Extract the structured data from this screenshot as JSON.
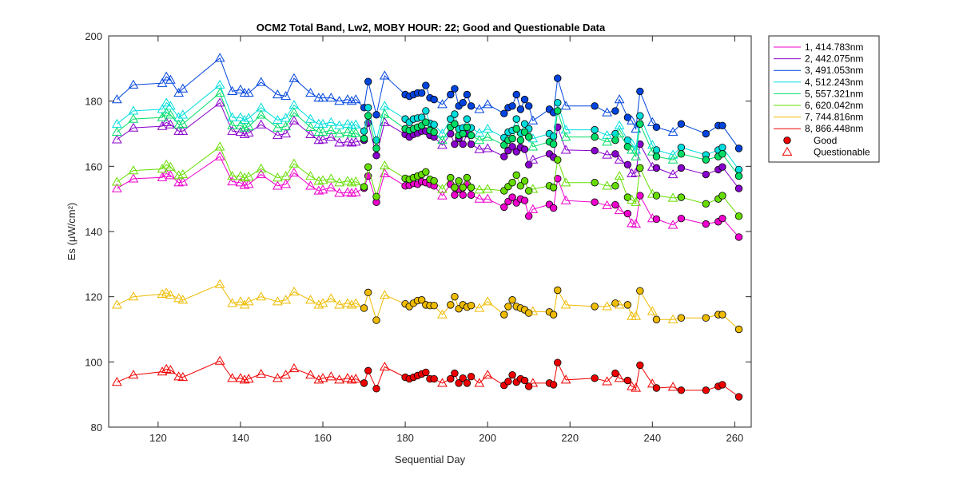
{
  "chart_data": {
    "type": "line",
    "title": "OCM2 Total Band,  Lw2, MOBY HOUR: 22;  Good and Questionable Data",
    "xlabel": "Sequential Day",
    "ylabel": "Es (μW/cm²)",
    "xlim": [
      108,
      264
    ],
    "ylim": [
      80,
      200
    ],
    "xticks": [
      120,
      140,
      160,
      180,
      200,
      220,
      240,
      260
    ],
    "yticks": [
      80,
      100,
      120,
      140,
      160,
      180,
      200
    ],
    "grid": false,
    "legend_position": "outside-right",
    "marker_legend": [
      {
        "label": "Good",
        "marker": "circle"
      },
      {
        "label": "Questionable",
        "marker": "triangle"
      }
    ],
    "x": [
      110,
      114,
      121,
      122,
      123,
      125,
      126,
      135,
      138,
      140,
      141,
      142,
      145,
      149,
      151,
      153,
      157,
      159,
      160,
      162,
      164,
      166,
      167,
      168,
      170,
      171,
      173,
      175,
      180,
      181,
      182,
      183,
      184,
      185,
      186,
      187,
      189,
      191,
      192,
      193,
      194,
      195,
      196,
      198,
      200,
      204,
      205,
      206,
      207,
      208,
      209,
      210,
      211,
      215,
      216,
      217,
      219,
      226,
      229,
      231,
      232,
      234,
      235,
      236,
      237,
      240,
      241,
      245,
      247,
      253,
      256,
      257,
      261
    ],
    "status": [
      "Q",
      "Q",
      "Q",
      "Q",
      "Q",
      "Q",
      "Q",
      "Q",
      "Q",
      "Q",
      "Q",
      "Q",
      "Q",
      "Q",
      "Q",
      "Q",
      "Q",
      "Q",
      "Q",
      "Q",
      "Q",
      "Q",
      "Q",
      "Q",
      "G",
      "G",
      "G",
      "Q",
      "G",
      "G",
      "G",
      "G",
      "G",
      "G",
      "G",
      "G",
      "Q",
      "G",
      "G",
      "G",
      "G",
      "G",
      "G",
      "Q",
      "Q",
      "G",
      "G",
      "G",
      "G",
      "G",
      "G",
      "G",
      "Q",
      "G",
      "G",
      "G",
      "Q",
      "G",
      "Q",
      "G",
      "Q",
      "G",
      "Q",
      "Q",
      "G",
      "Q",
      "G",
      "Q",
      "G",
      "G",
      "G",
      "G",
      "G"
    ],
    "series": [
      {
        "name": "1, 414.783nm",
        "color": "#ee00cc",
        "values": [
          153.2,
          156.2,
          156.6,
          157.8,
          157.2,
          155.0,
          155.2,
          163.0,
          155.3,
          155.0,
          154.2,
          154.5,
          157.5,
          154.0,
          154.5,
          158.0,
          154.0,
          152.5,
          152.8,
          153.5,
          151.8,
          152.0,
          151.8,
          152.0,
          153.3,
          157.0,
          149.0,
          157.8,
          154.0,
          154.2,
          154.8,
          154.5,
          155.3,
          155.0,
          154.5,
          154.0,
          151.0,
          154.5,
          151.2,
          153.0,
          151.2,
          154.5,
          151.2,
          150.0,
          150.0,
          147.5,
          149.2,
          150.5,
          148.8,
          150.0,
          149.5,
          144.7,
          146.8,
          148.3,
          147.2,
          156.2,
          149.5,
          149.0,
          148.0,
          148.2,
          146.5,
          145.5,
          142.5,
          142.3,
          151.0,
          144.0,
          143.8,
          142.0,
          144.0,
          142.3,
          143.0,
          144.0,
          138.3
        ]
      },
      {
        "name": "2, 442.075nm",
        "color": "#8800cc",
        "values": [
          168.2,
          171.8,
          172.3,
          173.5,
          172.8,
          170.8,
          170.8,
          179.5,
          170.8,
          170.5,
          169.8,
          170.3,
          172.8,
          169.5,
          170.0,
          174.0,
          169.8,
          168.0,
          168.2,
          169.0,
          167.2,
          167.5,
          167.2,
          167.5,
          168.0,
          173.3,
          163.3,
          173.5,
          169.8,
          169.0,
          169.8,
          170.2,
          170.8,
          170.8,
          169.5,
          169.0,
          166.5,
          170.0,
          166.8,
          168.5,
          166.8,
          170.0,
          166.8,
          165.2,
          165.5,
          163.0,
          164.8,
          166.0,
          164.5,
          165.8,
          165.2,
          160.5,
          162.0,
          163.8,
          162.8,
          172.0,
          165.0,
          164.8,
          163.5,
          163.8,
          162.0,
          160.5,
          157.8,
          158.0,
          166.8,
          159.8,
          159.5,
          157.5,
          159.5,
          157.5,
          159.0,
          159.8,
          153.2
        ]
      },
      {
        "name": "3, 491.053nm",
        "color": "#0044dd",
        "values": [
          180.5,
          185.0,
          185.5,
          187.5,
          186.5,
          182.5,
          183.8,
          193.2,
          183.0,
          183.5,
          182.5,
          182.5,
          185.8,
          182.0,
          181.5,
          187.0,
          182.5,
          181.0,
          181.0,
          181.0,
          180.0,
          180.5,
          180.0,
          180.5,
          178.0,
          186.0,
          175.8,
          187.8,
          182.0,
          181.5,
          182.0,
          182.5,
          182.5,
          184.8,
          181.0,
          180.5,
          179.0,
          182.0,
          183.8,
          178.5,
          179.5,
          182.0,
          178.5,
          177.5,
          179.0,
          176.2,
          178.0,
          178.5,
          182.0,
          177.5,
          180.5,
          178.5,
          174.0,
          177.5,
          176.5,
          187.0,
          178.5,
          178.5,
          176.5,
          177.0,
          180.5,
          175.0,
          174.0,
          171.5,
          183.0,
          173.5,
          172.0,
          170.5,
          173.0,
          170.0,
          172.5,
          172.5,
          165.5
        ]
      },
      {
        "name": "4, 512.243nm",
        "color": "#00dddd",
        "values": [
          173.0,
          177.0,
          177.5,
          179.5,
          178.5,
          175.0,
          175.8,
          185.0,
          175.0,
          175.0,
          174.2,
          174.8,
          178.0,
          174.2,
          174.8,
          178.8,
          174.5,
          173.0,
          173.0,
          173.5,
          172.5,
          173.0,
          172.5,
          172.8,
          170.8,
          178.0,
          168.0,
          178.5,
          174.5,
          173.5,
          174.5,
          174.8,
          175.0,
          177.0,
          173.2,
          172.8,
          170.0,
          174.5,
          176.0,
          171.5,
          171.8,
          174.5,
          171.8,
          170.2,
          171.5,
          168.8,
          170.5,
          171.0,
          174.5,
          170.2,
          173.0,
          171.5,
          168.5,
          170.0,
          169.2,
          179.5,
          171.2,
          171.2,
          169.5,
          170.0,
          172.5,
          168.0,
          167.0,
          165.0,
          175.5,
          166.5,
          165.0,
          163.5,
          165.8,
          163.5,
          165.0,
          165.8,
          159.0
        ]
      },
      {
        "name": "5, 557.321nm",
        "color": "#00dd66",
        "values": [
          170.5,
          174.5,
          175.0,
          176.5,
          175.8,
          172.8,
          173.0,
          182.5,
          172.5,
          172.5,
          171.8,
          172.2,
          175.8,
          171.8,
          172.2,
          176.5,
          172.0,
          170.5,
          170.5,
          171.0,
          170.0,
          170.5,
          170.0,
          170.2,
          168.5,
          175.5,
          165.5,
          176.0,
          171.5,
          171.0,
          171.5,
          172.0,
          172.5,
          173.5,
          171.0,
          170.5,
          168.0,
          172.0,
          173.0,
          169.5,
          170.0,
          172.0,
          169.5,
          168.0,
          169.0,
          166.5,
          168.0,
          168.5,
          171.5,
          168.0,
          170.5,
          169.0,
          166.0,
          167.5,
          166.8,
          177.0,
          169.0,
          169.0,
          167.5,
          168.0,
          170.0,
          166.0,
          165.0,
          163.0,
          173.0,
          164.5,
          163.0,
          162.0,
          163.8,
          162.0,
          163.0,
          163.8,
          157.0
        ]
      },
      {
        "name": "6, 620.042nm",
        "color": "#66dd00",
        "values": [
          155.2,
          158.7,
          159.2,
          160.5,
          159.8,
          157.2,
          157.5,
          166.0,
          157.0,
          157.0,
          156.5,
          156.8,
          159.3,
          156.5,
          157.0,
          160.8,
          157.0,
          155.5,
          155.7,
          156.2,
          155.0,
          155.5,
          155.0,
          155.3,
          153.7,
          159.8,
          150.7,
          160.2,
          156.3,
          156.0,
          156.5,
          157.0,
          157.5,
          158.3,
          156.0,
          155.5,
          153.0,
          156.5,
          153.5,
          155.5,
          153.5,
          156.5,
          153.5,
          152.8,
          153.0,
          152.5,
          153.8,
          155.0,
          157.3,
          154.0,
          155.5,
          152.5,
          153.0,
          154.0,
          153.5,
          162.0,
          155.0,
          155.0,
          154.0,
          154.0,
          157.0,
          150.5,
          149.7,
          149.0,
          159.5,
          151.5,
          151.0,
          150.3,
          150.5,
          148.5,
          150.0,
          151.0,
          144.7
        ]
      },
      {
        "name": "7, 744.816nm",
        "color": "#eebb00",
        "values": [
          117.5,
          120.0,
          120.8,
          121.2,
          120.5,
          119.5,
          119.0,
          123.8,
          118.0,
          118.5,
          117.5,
          118.5,
          120.0,
          118.5,
          119.0,
          121.5,
          119.0,
          117.5,
          118.0,
          119.5,
          117.5,
          118.0,
          117.5,
          118.0,
          116.5,
          121.3,
          112.8,
          120.5,
          117.8,
          117.0,
          118.0,
          118.8,
          119.0,
          117.5,
          117.3,
          117.3,
          114.5,
          117.5,
          120.0,
          116.3,
          117.5,
          116.8,
          117.3,
          116.5,
          118.5,
          114.5,
          117.0,
          119.0,
          117.0,
          116.5,
          116.0,
          115.0,
          115.5,
          115.3,
          114.5,
          122.0,
          117.5,
          117.0,
          117.0,
          118.0,
          117.5,
          117.5,
          114.0,
          114.0,
          121.8,
          115.5,
          113.0,
          113.0,
          113.5,
          113.5,
          114.5,
          114.5,
          110.0
        ]
      },
      {
        "name": "8, 866.448nm",
        "color": "#ee0000",
        "values": [
          93.8,
          96.0,
          97.0,
          97.8,
          97.5,
          95.5,
          95.3,
          100.3,
          95.0,
          95.0,
          94.5,
          94.8,
          96.3,
          95.0,
          96.0,
          98.0,
          96.0,
          94.5,
          95.0,
          95.5,
          94.5,
          95.0,
          94.5,
          94.8,
          93.5,
          97.3,
          91.8,
          98.5,
          95.3,
          94.8,
          95.3,
          95.8,
          96.3,
          96.8,
          94.8,
          94.8,
          93.5,
          94.8,
          96.5,
          93.5,
          95.0,
          93.5,
          95.5,
          93.5,
          96.0,
          92.8,
          94.0,
          96.0,
          93.8,
          94.8,
          94.3,
          92.5,
          93.5,
          93.5,
          93.0,
          99.8,
          94.5,
          95.0,
          94.0,
          96.5,
          95.0,
          94.3,
          92.5,
          92.0,
          99.0,
          93.3,
          92.0,
          92.3,
          91.3,
          91.3,
          92.5,
          93.0,
          89.3
        ]
      }
    ]
  }
}
